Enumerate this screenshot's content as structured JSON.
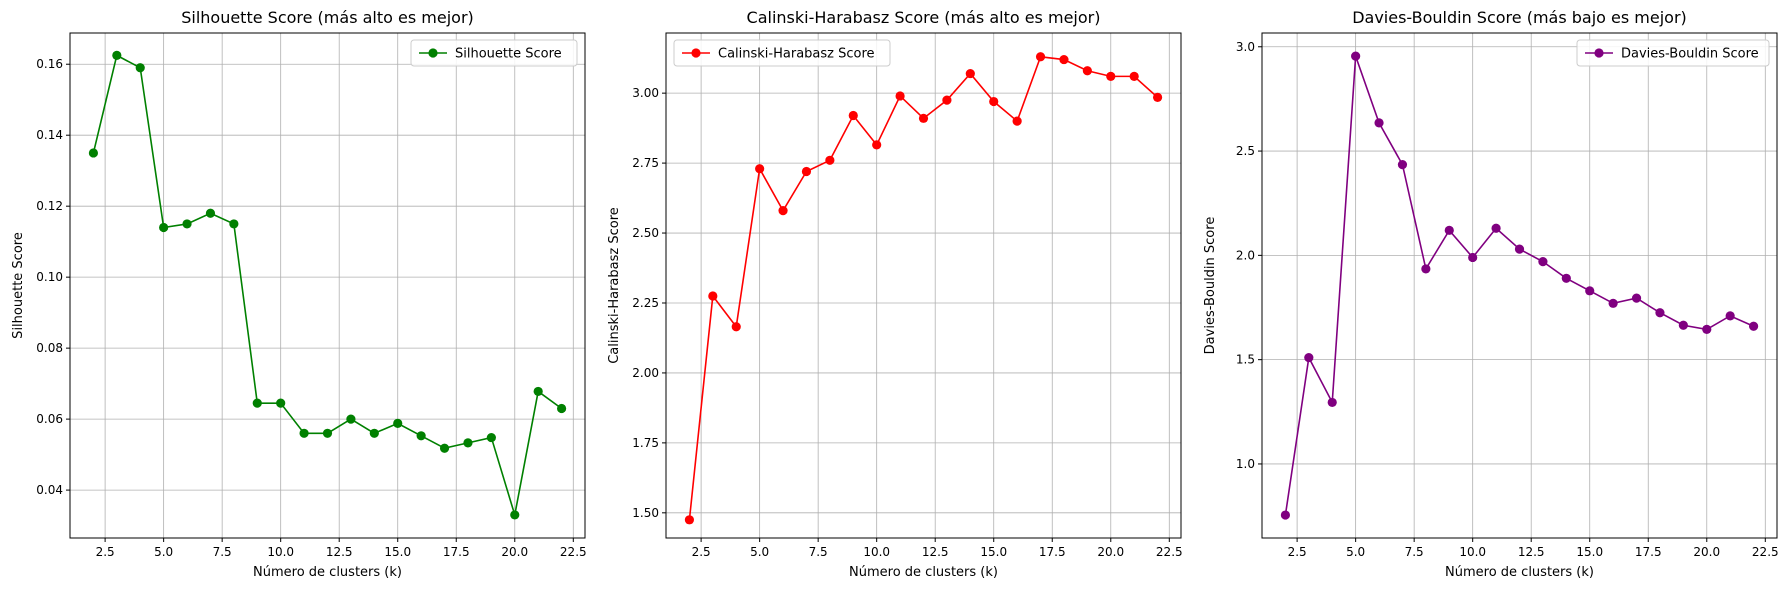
{
  "chart_data": [
    {
      "type": "line",
      "title": "Silhouette Score (más alto es mejor)",
      "xlabel": "Número de clusters (k)",
      "ylabel": "Silhouette Score",
      "xlim": [
        1.0,
        23.0
      ],
      "ylim": [
        0.0265,
        0.1688
      ],
      "xticks": [
        2.5,
        5.0,
        7.5,
        10.0,
        12.5,
        15.0,
        17.5,
        20.0,
        22.5
      ],
      "yticks": [
        0.04,
        0.06,
        0.08,
        0.1,
        0.12,
        0.14,
        0.16
      ],
      "grid": true,
      "legend": "top-right",
      "series": [
        {
          "name": "Silhouette Score",
          "color": "#008000",
          "x": [
            2,
            3,
            4,
            5,
            6,
            7,
            8,
            9,
            10,
            11,
            12,
            13,
            14,
            15,
            16,
            17,
            18,
            19,
            20,
            21,
            22
          ],
          "values": [
            0.135,
            0.1625,
            0.159,
            0.114,
            0.115,
            0.118,
            0.115,
            0.0645,
            0.0645,
            0.056,
            0.056,
            0.06,
            0.056,
            0.0588,
            0.0553,
            0.0518,
            0.0533,
            0.0548,
            0.033,
            0.0678,
            0.063
          ]
        }
      ]
    },
    {
      "type": "line",
      "title": "Calinski-Harabasz Score (más alto es mejor)",
      "xlabel": "Número de clusters (k)",
      "ylabel": "Calinski-Harabasz Score",
      "xlim": [
        1.0,
        23.0
      ],
      "ylim": [
        1.41,
        3.215
      ],
      "xticks": [
        2.5,
        5.0,
        7.5,
        10.0,
        12.5,
        15.0,
        17.5,
        20.0,
        22.5
      ],
      "yticks": [
        1.5,
        1.75,
        2.0,
        2.25,
        2.5,
        2.75,
        3.0
      ],
      "grid": true,
      "legend": "top-left",
      "series": [
        {
          "name": "Calinski-Harabasz Score",
          "color": "#ff0000",
          "x": [
            2,
            3,
            4,
            5,
            6,
            7,
            8,
            9,
            10,
            11,
            12,
            13,
            14,
            15,
            16,
            17,
            18,
            19,
            20,
            21,
            22
          ],
          "values": [
            1.475,
            2.275,
            2.165,
            2.73,
            2.58,
            2.72,
            2.76,
            2.92,
            2.815,
            2.99,
            2.91,
            2.975,
            3.07,
            2.97,
            2.9,
            3.13,
            3.12,
            3.08,
            3.06,
            3.06,
            2.985
          ]
        }
      ]
    },
    {
      "type": "line",
      "title": "Davies-Bouldin Score (más bajo es mejor)",
      "xlabel": "Número de clusters (k)",
      "ylabel": "Davies-Bouldin Score",
      "xlim": [
        1.0,
        23.0
      ],
      "ylim": [
        0.645,
        3.066
      ],
      "xticks": [
        2.5,
        5.0,
        7.5,
        10.0,
        12.5,
        15.0,
        17.5,
        20.0,
        22.5
      ],
      "yticks": [
        1.0,
        1.5,
        2.0,
        2.5,
        3.0
      ],
      "grid": true,
      "legend": "top-right",
      "series": [
        {
          "name": "Davies-Bouldin Score",
          "color": "#800080",
          "x": [
            2,
            3,
            4,
            5,
            6,
            7,
            8,
            9,
            10,
            11,
            12,
            13,
            14,
            15,
            16,
            17,
            18,
            19,
            20,
            21,
            22
          ],
          "values": [
            0.755,
            1.51,
            1.295,
            2.955,
            2.635,
            2.435,
            1.935,
            2.12,
            1.99,
            2.13,
            2.03,
            1.97,
            1.89,
            1.83,
            1.77,
            1.795,
            1.725,
            1.665,
            1.645,
            1.71,
            1.66
          ]
        }
      ]
    }
  ]
}
